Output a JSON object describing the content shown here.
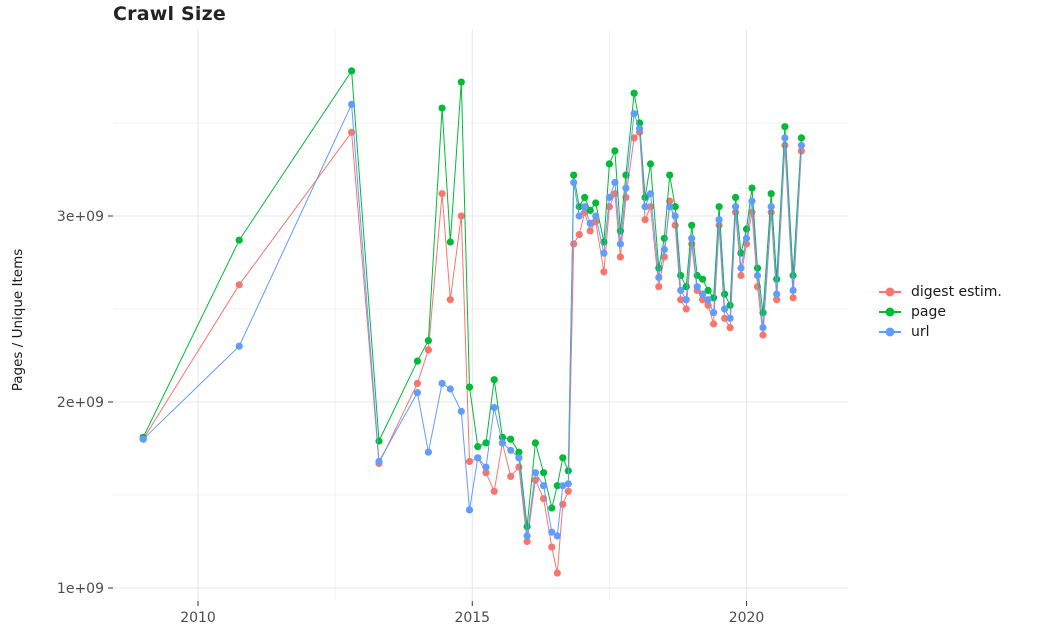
{
  "chart_data": {
    "type": "line",
    "title": "Crawl Size",
    "xlabel": "",
    "ylabel": "Pages / Unique Items",
    "value_unit": "billions (1e9)",
    "xlim": [
      2008.45,
      2021.85
    ],
    "ylim": [
      0.93,
      4.0
    ],
    "xticks": [
      2010,
      2015,
      2020
    ],
    "xtick_labels": [
      "2010",
      "2015",
      "2020"
    ],
    "yticks": [
      1,
      2,
      3
    ],
    "ytick_labels": [
      "1e+09",
      "2e+09",
      "3e+09"
    ],
    "minor_xticks": [
      2012.5,
      2017.5
    ],
    "minor_yticks": [
      1.5,
      2.5,
      3.5
    ],
    "grid": true,
    "legend_position": "right",
    "x": [
      2009.0,
      2010.75,
      2012.8,
      2013.3,
      2014.0,
      2014.2,
      2014.45,
      2014.6,
      2014.8,
      2014.95,
      2015.1,
      2015.25,
      2015.4,
      2015.55,
      2015.7,
      2015.85,
      2016.0,
      2016.15,
      2016.3,
      2016.45,
      2016.55,
      2016.65,
      2016.75,
      2016.85,
      2016.95,
      2017.05,
      2017.15,
      2017.25,
      2017.4,
      2017.5,
      2017.6,
      2017.7,
      2017.8,
      2017.95,
      2018.05,
      2018.15,
      2018.25,
      2018.4,
      2018.5,
      2018.6,
      2018.7,
      2018.8,
      2018.9,
      2019.0,
      2019.1,
      2019.2,
      2019.3,
      2019.4,
      2019.5,
      2019.6,
      2019.7,
      2019.8,
      2019.9,
      2020.0,
      2020.1,
      2020.2,
      2020.3,
      2020.45,
      2020.55,
      2020.7,
      2020.85,
      2021.0
    ],
    "series": [
      {
        "name": "digest estim.",
        "color": "#F8766D",
        "values": [
          1.8,
          2.63,
          3.45,
          1.67,
          2.1,
          2.28,
          3.12,
          2.55,
          3.0,
          1.68,
          1.7,
          1.62,
          1.52,
          1.78,
          1.6,
          1.65,
          1.25,
          1.58,
          1.48,
          1.22,
          1.08,
          1.45,
          1.52,
          2.85,
          2.9,
          3.02,
          2.92,
          2.97,
          2.7,
          3.05,
          3.12,
          2.78,
          3.1,
          3.42,
          3.45,
          2.98,
          3.05,
          2.62,
          2.78,
          3.08,
          2.95,
          2.55,
          2.5,
          2.85,
          2.6,
          2.55,
          2.52,
          2.42,
          2.95,
          2.45,
          2.4,
          3.02,
          2.68,
          2.85,
          3.02,
          2.62,
          2.36,
          3.02,
          2.55,
          3.38,
          2.56,
          3.35
        ]
      },
      {
        "name": "page",
        "color": "#00BA38",
        "values": [
          1.81,
          2.87,
          3.78,
          1.79,
          2.22,
          2.33,
          3.58,
          2.86,
          3.72,
          2.08,
          1.76,
          1.78,
          2.12,
          1.81,
          1.8,
          1.73,
          1.33,
          1.78,
          1.62,
          1.43,
          1.55,
          1.7,
          1.63,
          3.22,
          3.05,
          3.1,
          3.03,
          3.07,
          2.86,
          3.28,
          3.35,
          2.92,
          3.22,
          3.66,
          3.5,
          3.1,
          3.28,
          2.72,
          2.88,
          3.22,
          3.05,
          2.68,
          2.62,
          2.95,
          2.68,
          2.66,
          2.6,
          2.56,
          3.05,
          2.58,
          2.52,
          3.1,
          2.8,
          2.93,
          3.15,
          2.72,
          2.48,
          3.12,
          2.66,
          3.48,
          2.68,
          3.42
        ]
      },
      {
        "name": "url",
        "color": "#619CFF",
        "values": [
          1.8,
          2.3,
          3.6,
          1.68,
          2.05,
          1.73,
          2.1,
          2.07,
          1.95,
          1.42,
          1.7,
          1.65,
          1.97,
          1.78,
          1.74,
          1.7,
          1.28,
          1.62,
          1.55,
          1.3,
          1.28,
          1.55,
          1.56,
          3.18,
          3.0,
          3.05,
          2.96,
          3.0,
          2.8,
          3.1,
          3.18,
          2.85,
          3.15,
          3.55,
          3.47,
          3.05,
          3.12,
          2.67,
          2.82,
          3.05,
          3.0,
          2.6,
          2.55,
          2.88,
          2.62,
          2.58,
          2.55,
          2.48,
          2.98,
          2.5,
          2.45,
          3.05,
          2.72,
          2.88,
          3.08,
          2.68,
          2.4,
          3.05,
          2.58,
          3.42,
          2.6,
          3.38
        ]
      }
    ],
    "style": {
      "grid_major_color": "#e7e7e7",
      "grid_minor_color": "#f3f3f3",
      "tick_color": "#333333",
      "tick_label_color": "#4d4d4d",
      "point_radius": 3.6,
      "line_width": 1
    }
  }
}
